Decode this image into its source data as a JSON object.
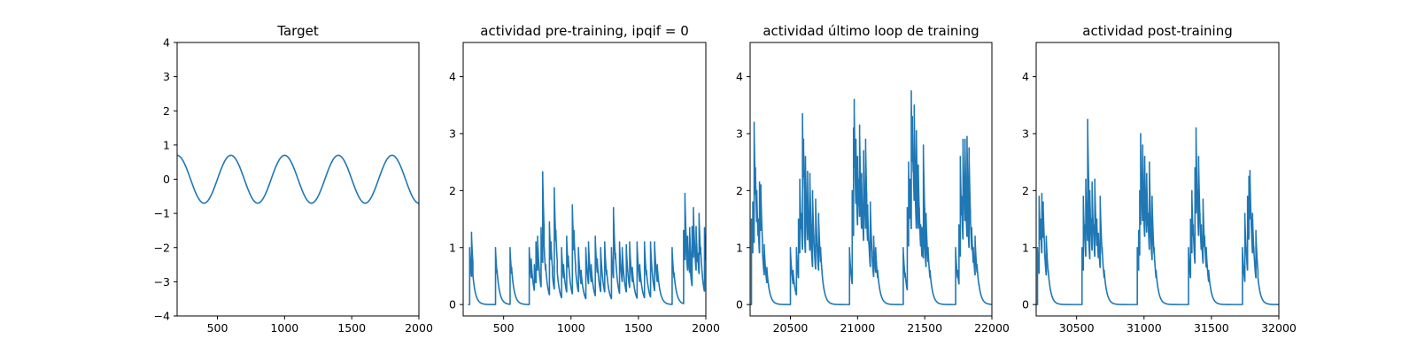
{
  "colors": {
    "series": "#1f77b4",
    "axes": "#000000",
    "background": "#ffffff"
  },
  "chart_data": [
    {
      "type": "line",
      "title": "Target",
      "xlabel": "",
      "ylabel": "",
      "xlim": [
        200,
        2000
      ],
      "ylim": [
        -4,
        4
      ],
      "xticks": [
        500,
        1000,
        1500,
        2000
      ],
      "yticks": [
        -4,
        -3,
        -2,
        -1,
        0,
        1,
        2,
        3,
        4
      ],
      "grid": false,
      "series": [
        {
          "function": "sine",
          "amplitude": 0.7,
          "period": 400,
          "peak_at": 600,
          "x_start": 200,
          "x_end": 2000
        }
      ]
    },
    {
      "type": "line",
      "title": "actividad pre-training, ipqif = 0",
      "xlabel": "",
      "ylabel": "",
      "xlim": [
        200,
        2000
      ],
      "ylim": [
        -0.2,
        4.6
      ],
      "xticks": [
        500,
        1000,
        1500,
        2000
      ],
      "yticks": [
        0,
        1,
        2,
        3,
        4
      ],
      "grid": false,
      "series": [
        {
          "x_start": 240,
          "x_end": 2000,
          "decay": 20,
          "spikes": [
            [
              248,
              1.0
            ],
            [
              262,
              1.27
            ],
            [
              272,
              0.55
            ],
            [
              440,
              1.0
            ],
            [
              452,
              0.6
            ],
            [
              548,
              1.0
            ],
            [
              560,
              0.65
            ],
            [
              690,
              1.0
            ],
            [
              705,
              0.8
            ],
            [
              728,
              0.7
            ],
            [
              740,
              1.1
            ],
            [
              752,
              1.2
            ],
            [
              765,
              0.6
            ],
            [
              778,
              1.35
            ],
            [
              790,
              2.33
            ],
            [
              800,
              1.1
            ],
            [
              812,
              0.7
            ],
            [
              840,
              1.45
            ],
            [
              852,
              1.1
            ],
            [
              862,
              0.55
            ],
            [
              876,
              2.05
            ],
            [
              888,
              1.3
            ],
            [
              898,
              0.6
            ],
            [
              930,
              1.0
            ],
            [
              945,
              0.7
            ],
            [
              968,
              1.2
            ],
            [
              980,
              0.85
            ],
            [
              1010,
              1.75
            ],
            [
              1022,
              1.3
            ],
            [
              1034,
              0.65
            ],
            [
              1055,
              1.0
            ],
            [
              1075,
              0.6
            ],
            [
              1110,
              1.0
            ],
            [
              1130,
              1.1
            ],
            [
              1150,
              0.7
            ],
            [
              1180,
              1.2
            ],
            [
              1195,
              0.8
            ],
            [
              1220,
              1.0
            ],
            [
              1250,
              1.1
            ],
            [
              1265,
              0.6
            ],
            [
              1300,
              1.0
            ],
            [
              1315,
              1.7
            ],
            [
              1330,
              0.9
            ],
            [
              1360,
              1.1
            ],
            [
              1380,
              1.0
            ],
            [
              1410,
              1.05
            ],
            [
              1435,
              1.1
            ],
            [
              1455,
              0.65
            ],
            [
              1490,
              1.1
            ],
            [
              1510,
              0.7
            ],
            [
              1545,
              1.1
            ],
            [
              1560,
              0.6
            ],
            [
              1590,
              1.1
            ],
            [
              1620,
              1.1
            ],
            [
              1640,
              0.7
            ],
            [
              1750,
              1.0
            ],
            [
              1765,
              0.55
            ],
            [
              1835,
              1.3
            ],
            [
              1845,
              1.95
            ],
            [
              1855,
              1.0
            ],
            [
              1865,
              1.2
            ],
            [
              1880,
              1.35
            ],
            [
              1888,
              0.55
            ],
            [
              1898,
              1.37
            ],
            [
              1908,
              1.7
            ],
            [
              1918,
              1.0
            ],
            [
              1928,
              1.37
            ],
            [
              1940,
              0.9
            ],
            [
              1950,
              1.6
            ],
            [
              1962,
              1.0
            ],
            [
              1975,
              0.5
            ],
            [
              1990,
              1.35
            ]
          ]
        }
      ]
    },
    {
      "type": "line",
      "title": "actividad último loop de training",
      "xlabel": "",
      "ylabel": "",
      "xlim": [
        20200,
        22000
      ],
      "ylim": [
        -0.2,
        4.6
      ],
      "xticks": [
        20500,
        21000,
        21500,
        22000
      ],
      "yticks": [
        0,
        1,
        2,
        3,
        4
      ],
      "grid": false,
      "series": [
        {
          "x_start": 20200,
          "x_end": 22000,
          "decay": 20,
          "spikes": [
            [
              20210,
              1.5
            ],
            [
              20220,
              1.8
            ],
            [
              20230,
              3.2
            ],
            [
              20240,
              2.4
            ],
            [
              20250,
              2.0
            ],
            [
              20260,
              1.5
            ],
            [
              20270,
              2.15
            ],
            [
              20280,
              2.1
            ],
            [
              20292,
              1.0
            ],
            [
              20305,
              1.05
            ],
            [
              20325,
              0.65
            ],
            [
              20500,
              1.0
            ],
            [
              20520,
              0.6
            ],
            [
              20545,
              1.0
            ],
            [
              20560,
              1.5
            ],
            [
              20570,
              2.2
            ],
            [
              20580,
              1.6
            ],
            [
              20590,
              3.35
            ],
            [
              20598,
              2.9
            ],
            [
              20605,
              1.3
            ],
            [
              20612,
              2.6
            ],
            [
              20620,
              1.7
            ],
            [
              20628,
              2.34
            ],
            [
              20636,
              1.5
            ],
            [
              20645,
              2.3
            ],
            [
              20655,
              1.1
            ],
            [
              20665,
              2.0
            ],
            [
              20675,
              1.2
            ],
            [
              20688,
              1.85
            ],
            [
              20700,
              1.0
            ],
            [
              20710,
              1.6
            ],
            [
              20725,
              1.0
            ],
            [
              20735,
              0.6
            ],
            [
              20940,
              1.0
            ],
            [
              20960,
              2.0
            ],
            [
              20970,
              3.1
            ],
            [
              20975,
              3.6
            ],
            [
              20982,
              2.4
            ],
            [
              20988,
              2.9
            ],
            [
              20995,
              1.8
            ],
            [
              21000,
              2.6
            ],
            [
              21008,
              2.2
            ],
            [
              21015,
              3.15
            ],
            [
              21022,
              2.0
            ],
            [
              21030,
              2.3
            ],
            [
              21038,
              1.6
            ],
            [
              21045,
              2.7
            ],
            [
              21052,
              2.0
            ],
            [
              21060,
              2.9
            ],
            [
              21068,
              1.6
            ],
            [
              21075,
              1.75
            ],
            [
              21085,
              1.1
            ],
            [
              21095,
              1.8
            ],
            [
              21108,
              0.9
            ],
            [
              21120,
              1.2
            ],
            [
              21135,
              1.0
            ],
            [
              21150,
              0.6
            ],
            [
              21340,
              1.0
            ],
            [
              21355,
              0.55
            ],
            [
              21370,
              1.7
            ],
            [
              21380,
              2.5
            ],
            [
              21390,
              2.2
            ],
            [
              21400,
              3.75
            ],
            [
              21408,
              3.3
            ],
            [
              21415,
              2.6
            ],
            [
              21422,
              3.5
            ],
            [
              21430,
              2.0
            ],
            [
              21438,
              3.05
            ],
            [
              21445,
              1.9
            ],
            [
              21452,
              2.45
            ],
            [
              21460,
              1.7
            ],
            [
              21470,
              1.4
            ],
            [
              21480,
              1.35
            ],
            [
              21490,
              2.8
            ],
            [
              21500,
              1.1
            ],
            [
              21510,
              1.6
            ],
            [
              21525,
              1.0
            ],
            [
              21540,
              0.6
            ],
            [
              21730,
              1.0
            ],
            [
              21745,
              0.6
            ],
            [
              21755,
              1.4
            ],
            [
              21765,
              2.6
            ],
            [
              21775,
              1.9
            ],
            [
              21785,
              2.9
            ],
            [
              21792,
              2.2
            ],
            [
              21800,
              2.9
            ],
            [
              21808,
              1.7
            ],
            [
              21815,
              2.95
            ],
            [
              21822,
              1.5
            ],
            [
              21830,
              2.75
            ],
            [
              21840,
              1.6
            ],
            [
              21850,
              1.35
            ],
            [
              21862,
              1.0
            ],
            [
              21875,
              1.2
            ],
            [
              21890,
              0.7
            ],
            [
              21905,
              0.35
            ]
          ]
        }
      ]
    },
    {
      "type": "line",
      "title": "actividad post-training",
      "xlabel": "",
      "ylabel": "",
      "xlim": [
        30200,
        32000
      ],
      "ylim": [
        -0.2,
        4.6
      ],
      "xticks": [
        30500,
        31000,
        31500,
        32000
      ],
      "yticks": [
        0,
        1,
        2,
        3,
        4
      ],
      "grid": false,
      "series": [
        {
          "x_start": 30200,
          "x_end": 32000,
          "decay": 20,
          "spikes": [
            [
              30210,
              1.0
            ],
            [
              30222,
              1.9
            ],
            [
              30232,
              1.5
            ],
            [
              30242,
              1.95
            ],
            [
              30252,
              1.8
            ],
            [
              30262,
              1.0
            ],
            [
              30275,
              1.2
            ],
            [
              30290,
              0.6
            ],
            [
              30540,
              1.0
            ],
            [
              30550,
              1.9
            ],
            [
              30558,
              1.4
            ],
            [
              30568,
              2.2
            ],
            [
              30575,
              1.6
            ],
            [
              30582,
              3.25
            ],
            [
              30590,
              1.2
            ],
            [
              30598,
              2.0
            ],
            [
              30606,
              1.5
            ],
            [
              30615,
              2.15
            ],
            [
              30625,
              1.4
            ],
            [
              30635,
              2.2
            ],
            [
              30650,
              1.5
            ],
            [
              30662,
              1.25
            ],
            [
              30675,
              1.9
            ],
            [
              30690,
              1.0
            ],
            [
              30705,
              0.6
            ],
            [
              30950,
              1.0
            ],
            [
              30960,
              1.3
            ],
            [
              30968,
              2.0
            ],
            [
              30975,
              3.0
            ],
            [
              30982,
              2.2
            ],
            [
              30990,
              2.8
            ],
            [
              30998,
              1.7
            ],
            [
              31005,
              2.6
            ],
            [
              31012,
              1.9
            ],
            [
              31020,
              2.3
            ],
            [
              31030,
              1.6
            ],
            [
              31040,
              2.5
            ],
            [
              31050,
              1.3
            ],
            [
              31060,
              1.9
            ],
            [
              31075,
              1.0
            ],
            [
              31090,
              0.6
            ],
            [
              31330,
              1.0
            ],
            [
              31345,
              1.5
            ],
            [
              31355,
              2.0
            ],
            [
              31365,
              1.4
            ],
            [
              31378,
              2.4
            ],
            [
              31386,
              3.1
            ],
            [
              31395,
              2.0
            ],
            [
              31405,
              2.6
            ],
            [
              31415,
              1.6
            ],
            [
              31425,
              1.4
            ],
            [
              31438,
              1.85
            ],
            [
              31450,
              1.2
            ],
            [
              31462,
              1.0
            ],
            [
              31480,
              0.6
            ],
            [
              31730,
              1.0
            ],
            [
              31748,
              1.6
            ],
            [
              31758,
              1.0
            ],
            [
              31768,
              1.9
            ],
            [
              31778,
              2.25
            ],
            [
              31786,
              2.35
            ],
            [
              31795,
              1.5
            ],
            [
              31805,
              1.6
            ],
            [
              31815,
              1.0
            ],
            [
              31830,
              1.3
            ],
            [
              31845,
              0.5
            ]
          ]
        }
      ]
    }
  ]
}
